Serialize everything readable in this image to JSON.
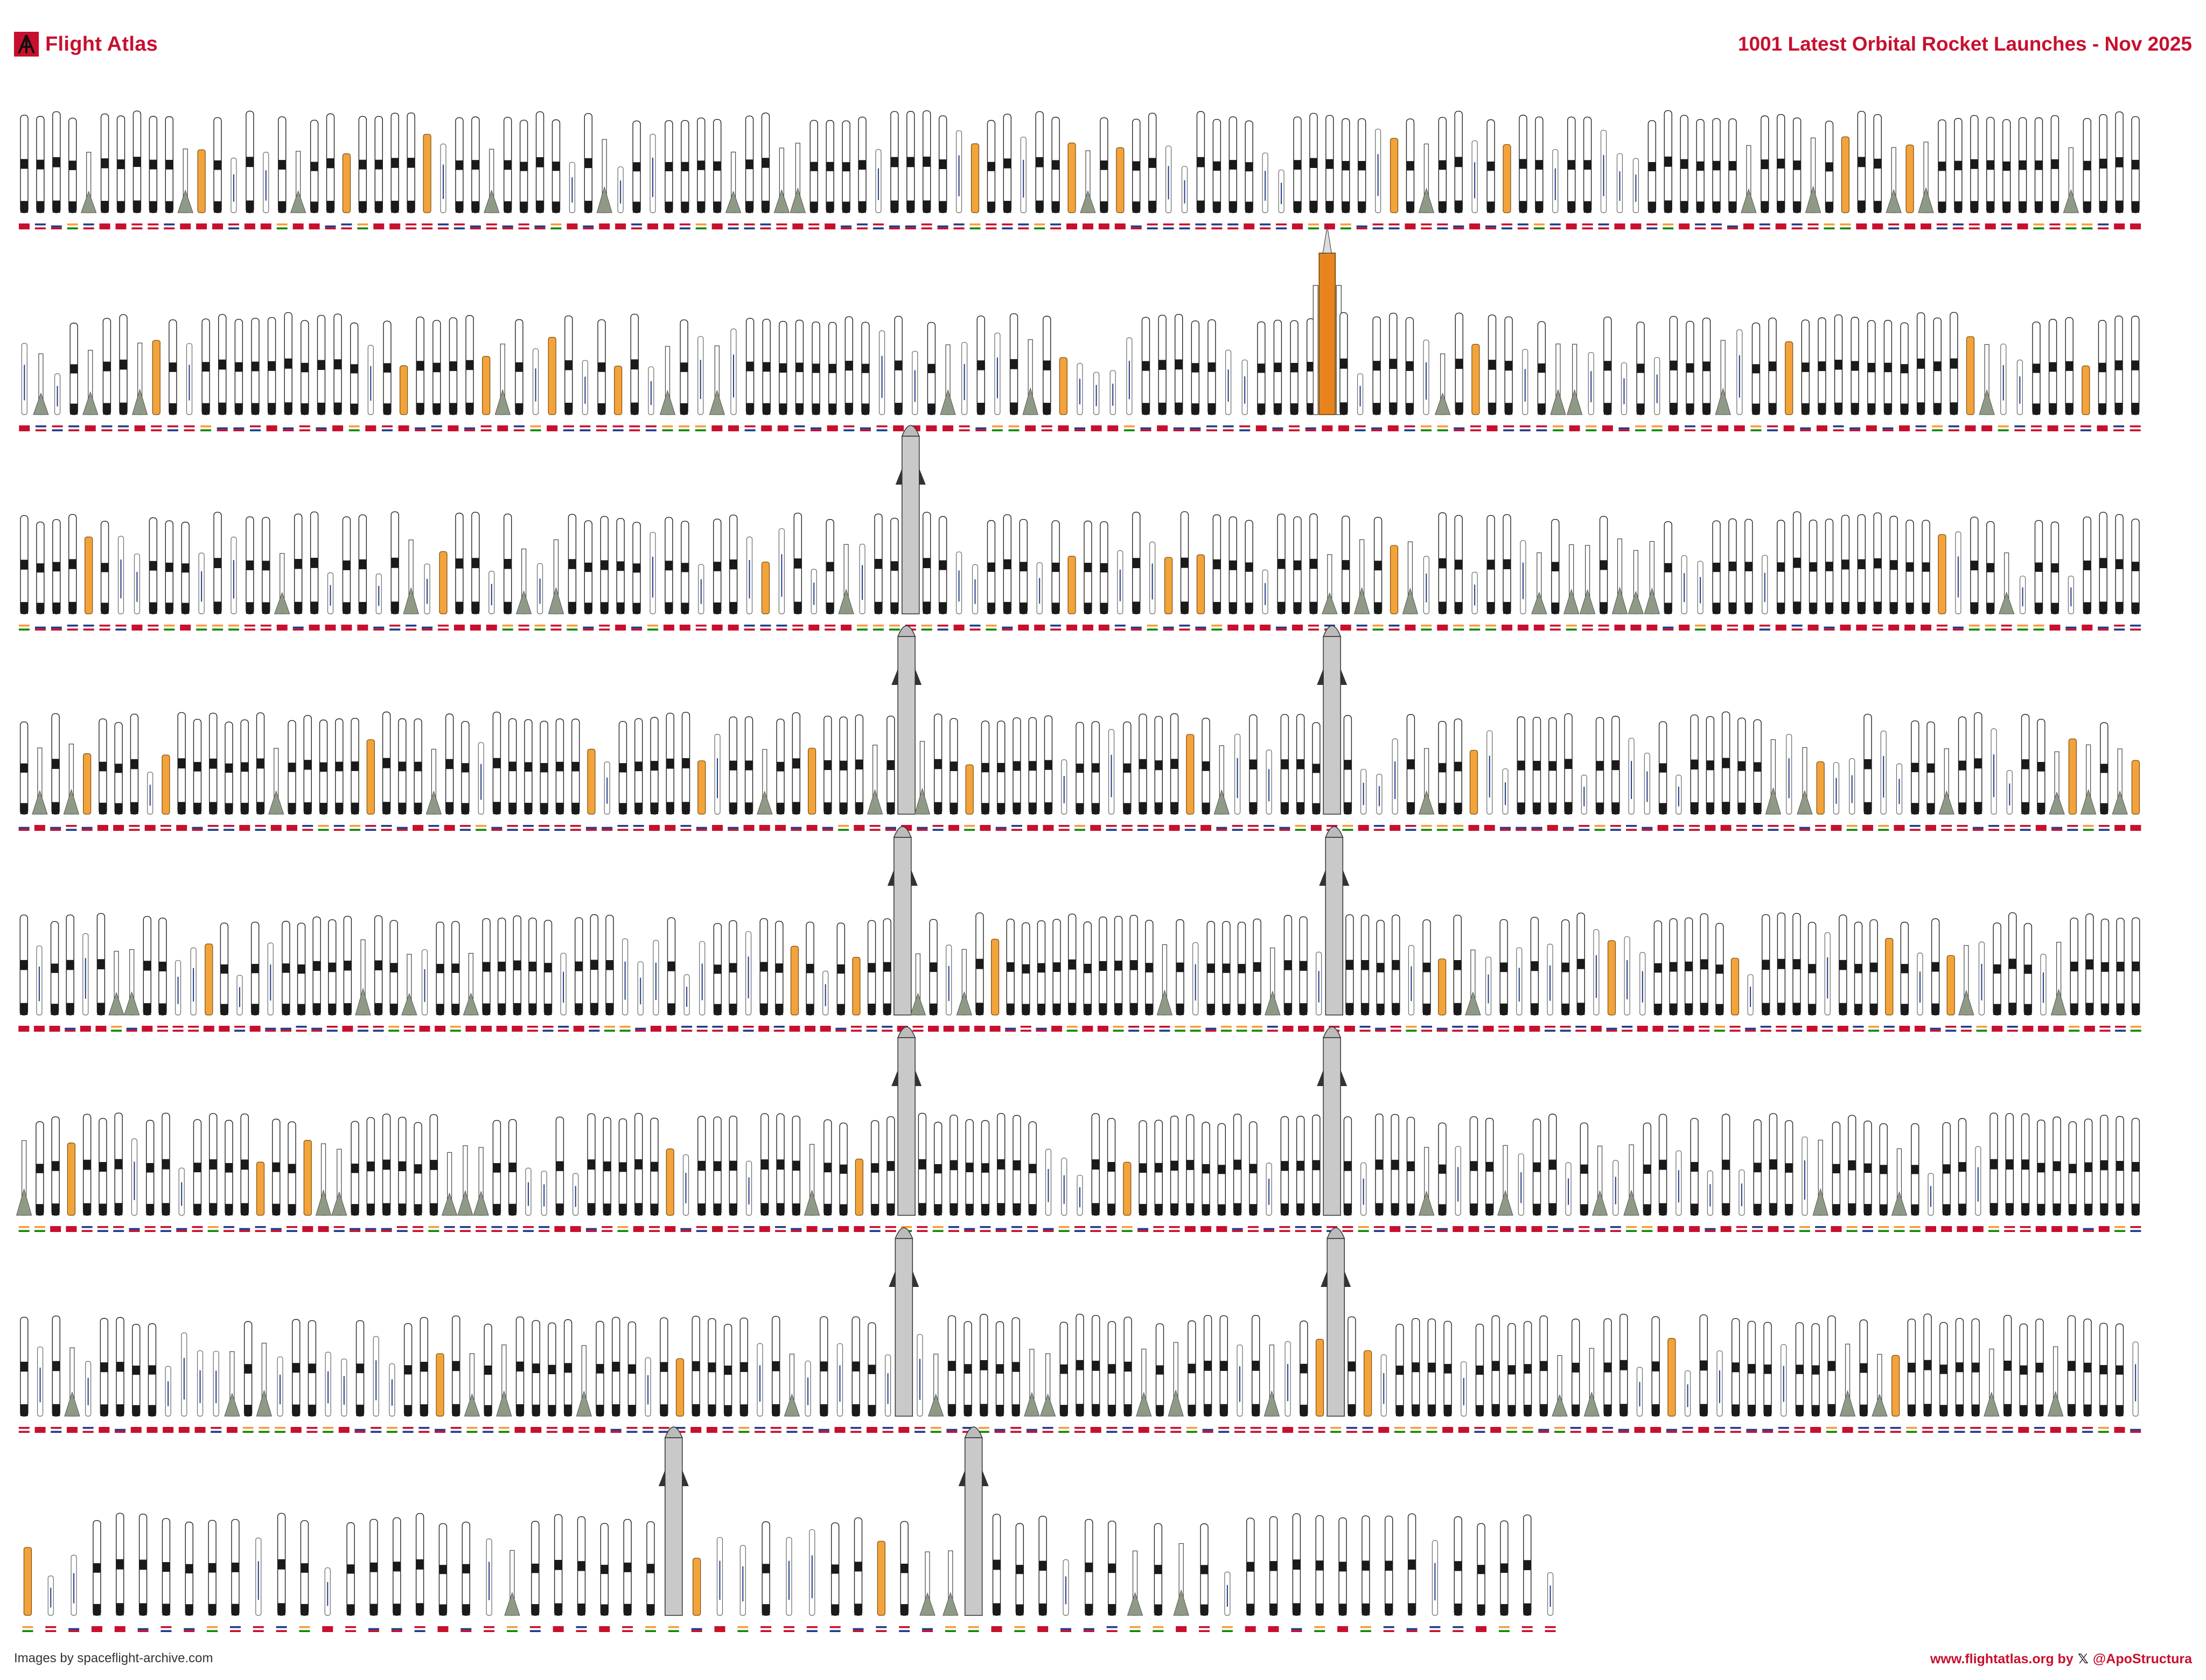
{
  "header": {
    "brand": "Flight Atlas",
    "title": "1001 Latest Orbital Rocket Launches - Nov 2025"
  },
  "footer": {
    "credit": "Images by spaceflight-archive.com",
    "site": "www.flightatlas.org by",
    "handle": "@ApoStructura"
  },
  "colors": {
    "accent": "#c8102e",
    "falcon_interstage": "#1a1a1a",
    "sls_orange": "#e8841e",
    "soyuz_gray": "#8f9a86",
    "starship_steel": "#c9c9c9"
  },
  "launch_rows": [
    {
      "row": 1,
      "count": 132,
      "feature": "mixed"
    },
    {
      "row": 2,
      "count": 129,
      "feature": "sls"
    },
    {
      "row": 3,
      "count": 132,
      "feature": "starship"
    },
    {
      "row": 4,
      "count": 135,
      "feature": "starship"
    },
    {
      "row": 5,
      "count": 138,
      "feature": "starship"
    },
    {
      "row": 6,
      "count": 135,
      "feature": "starship"
    },
    {
      "row": 7,
      "count": 133,
      "feature": "starship"
    },
    {
      "row": 8,
      "count": 67,
      "feature": "starship"
    }
  ],
  "total_launches": 1001
}
